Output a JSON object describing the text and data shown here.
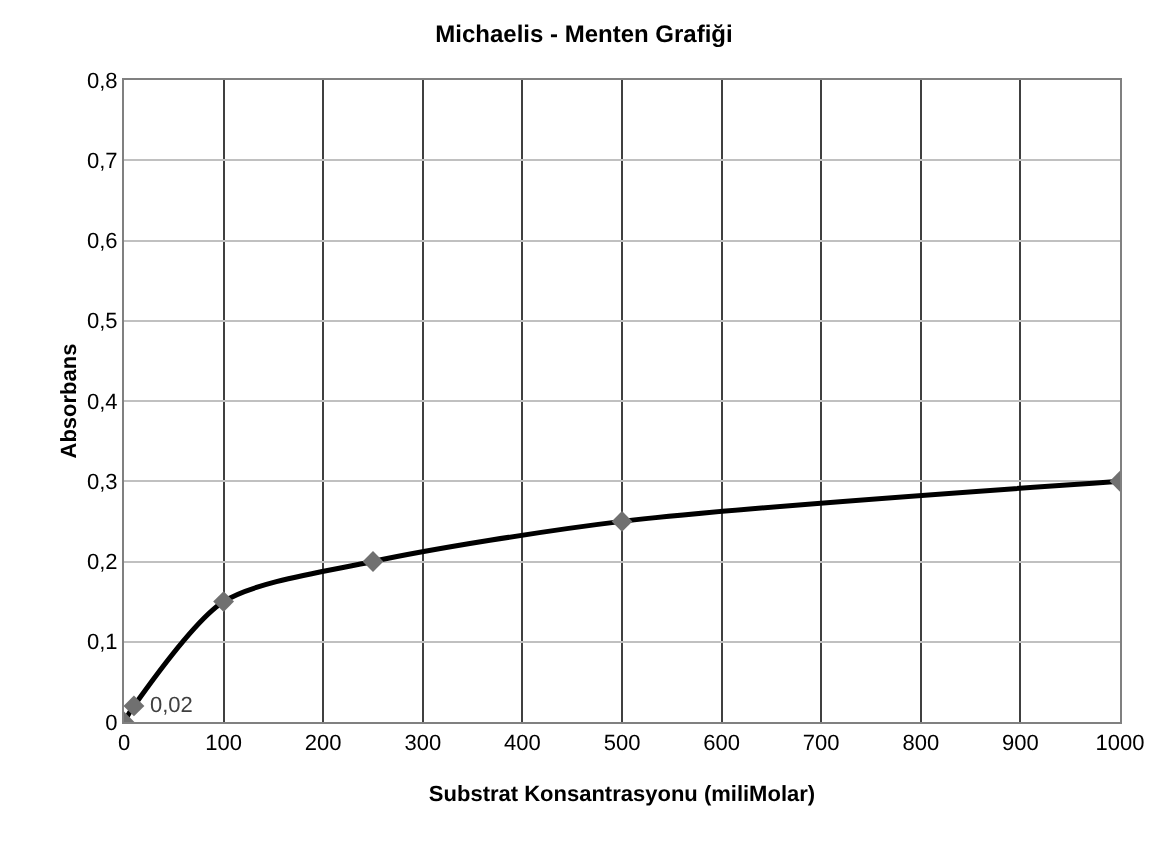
{
  "chart_data": {
    "type": "line",
    "title": "Michaelis - Menten Grafiği",
    "xlabel": "Substrat Konsantrasyonu (miliMolar)",
    "ylabel": "Absorbans",
    "x": [
      0,
      10,
      100,
      250,
      500,
      1000
    ],
    "series": [
      {
        "color": "#000000",
        "values": [
          0,
          0.02,
          0.15,
          0.2,
          0.25,
          0.3
        ],
        "value_labels": [
          null,
          "0,02",
          null,
          null,
          null,
          null
        ]
      }
    ],
    "xlim": [
      0,
      1000
    ],
    "xticks": [
      0,
      100,
      200,
      300,
      400,
      500,
      600,
      700,
      800,
      900,
      1000
    ],
    "ylim": [
      0,
      0.8
    ],
    "yticks": [
      0,
      {
        "value": 0.1,
        "label": "0,1"
      },
      {
        "value": 0.2,
        "label": "0,2"
      },
      {
        "value": 0.3,
        "label": "0,3"
      },
      {
        "value": 0.4,
        "label": "0,4"
      },
      {
        "value": 0.5,
        "label": "0,5"
      },
      {
        "value": 0.6,
        "label": "0,6"
      },
      {
        "value": 0.7,
        "label": "0,7"
      },
      {
        "value": 0.8,
        "label": "0,8"
      }
    ],
    "grid": true,
    "marker": "diamond",
    "line_style": "solid",
    "legend": false
  }
}
